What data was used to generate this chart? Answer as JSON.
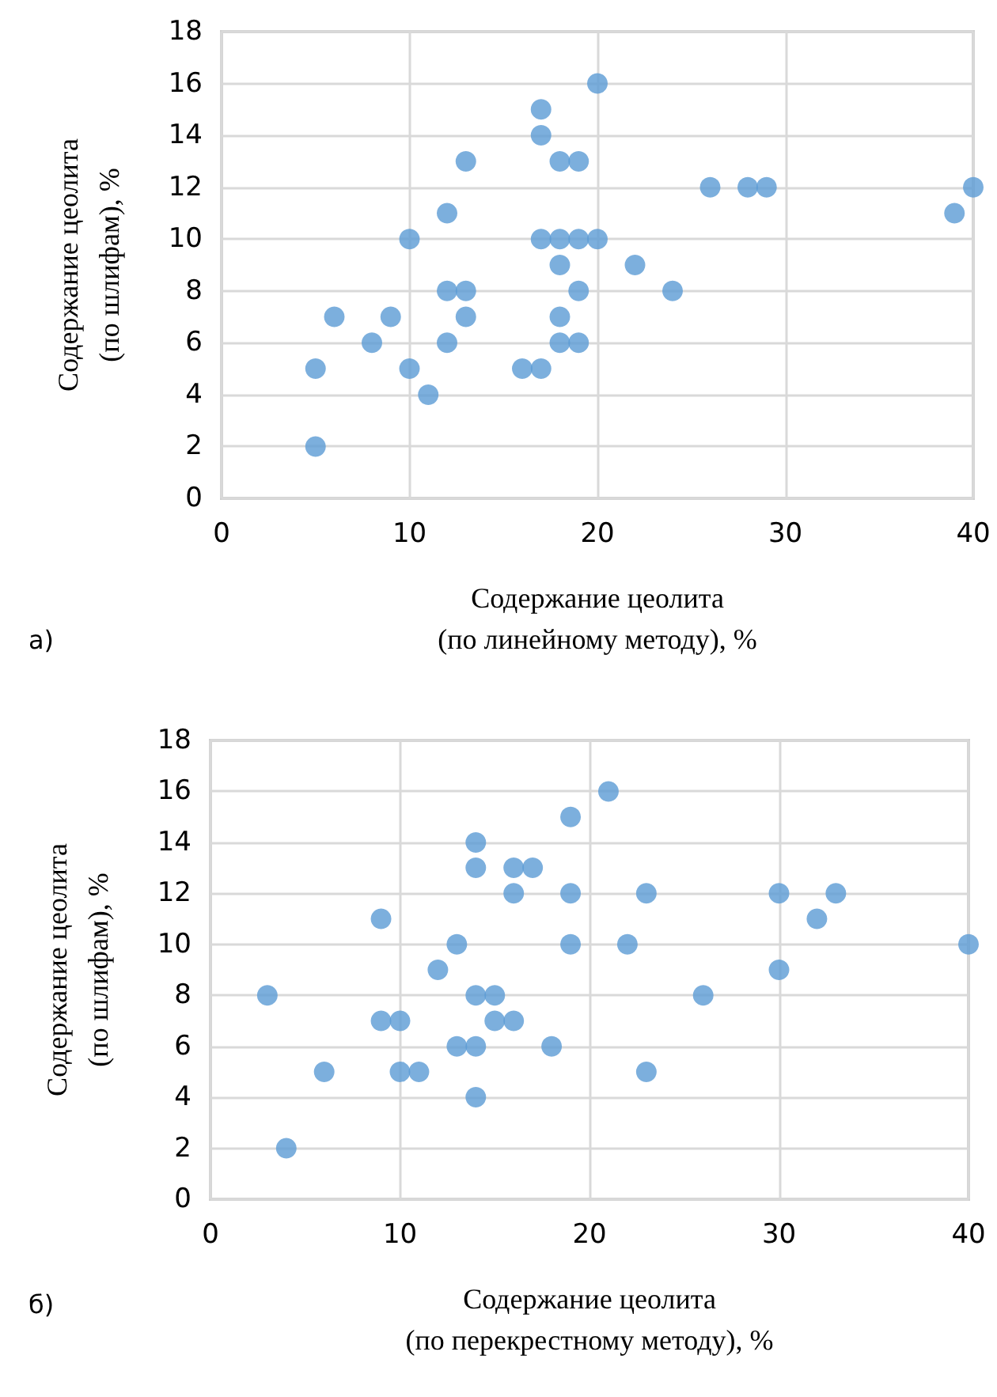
{
  "chart_data": [
    {
      "type": "scatter",
      "xlabel": "Содержание цеолита\n(по линейному методу), %",
      "ylabel": "Содержание цеолита\n(по шлифам), %",
      "annotations": [
        "а)"
      ],
      "x": [
        20,
        17,
        17,
        13,
        18,
        19,
        26,
        28,
        29,
        40,
        39,
        12,
        10,
        17,
        18,
        19,
        20,
        18,
        22,
        12,
        13,
        19,
        24,
        6,
        9,
        13,
        18,
        8,
        12,
        18,
        19,
        5,
        10,
        16,
        17,
        11,
        5
      ],
      "values": [
        16,
        15,
        14,
        13,
        13,
        13,
        12,
        12,
        12,
        12,
        11,
        11,
        10,
        10,
        10,
        10,
        10,
        9,
        9,
        8,
        8,
        8,
        8,
        7,
        7,
        7,
        7,
        6,
        6,
        6,
        6,
        5,
        5,
        5,
        5,
        4,
        2
      ],
      "color": "#5b9bd5",
      "marker": "circle",
      "grid": true,
      "xlim": [
        0,
        40
      ],
      "xticks": [
        0,
        10,
        20,
        30,
        40
      ],
      "ylim": [
        0,
        18
      ],
      "yticks": [
        0,
        2,
        4,
        6,
        8,
        10,
        12,
        14,
        16,
        18
      ]
    },
    {
      "type": "scatter",
      "xlabel": "Содержание цеолита\n(по перекрестному методу), %",
      "ylabel": "Содержание цеолита\n(по шлифам), %",
      "annotations": [
        "б)"
      ],
      "x": [
        21,
        19,
        14,
        14,
        16,
        17,
        16,
        19,
        23,
        30,
        33,
        9,
        32,
        13,
        19,
        22,
        40,
        12,
        30,
        3,
        14,
        15,
        26,
        9,
        10,
        15,
        16,
        13,
        14,
        18,
        6,
        10,
        11,
        23,
        14,
        4
      ],
      "values": [
        16,
        15,
        14,
        13,
        13,
        13,
        12,
        12,
        12,
        12,
        12,
        11,
        11,
        10,
        10,
        10,
        10,
        9,
        9,
        8,
        8,
        8,
        8,
        7,
        7,
        7,
        7,
        6,
        6,
        6,
        5,
        5,
        5,
        5,
        4,
        2
      ],
      "color": "#5b9bd5",
      "marker": "circle",
      "grid": true,
      "xlim": [
        0,
        40
      ],
      "xticks": [
        0,
        10,
        20,
        30,
        40
      ],
      "ylim": [
        0,
        18
      ],
      "yticks": [
        0,
        2,
        4,
        6,
        8,
        10,
        12,
        14,
        16,
        18
      ]
    }
  ]
}
